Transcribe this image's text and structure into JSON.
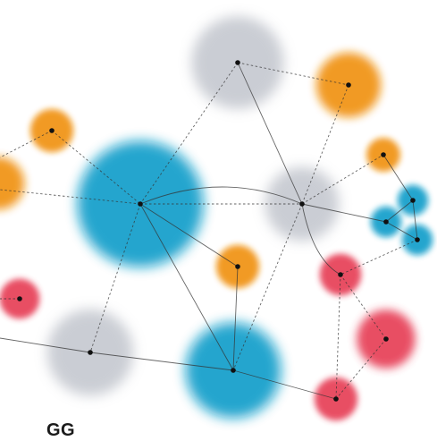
{
  "caption": "GG",
  "colors": {
    "blue": "#0a9cc9",
    "orange": "#f0900a",
    "gray": "#b9bdc6",
    "red": "#e63a52",
    "edge": "#333333",
    "dot": "#111111"
  },
  "nodes": [
    {
      "id": "gray-top",
      "color": "gray",
      "size": "large"
    },
    {
      "id": "orange-top-right",
      "color": "orange",
      "size": "medium"
    },
    {
      "id": "orange-left",
      "color": "orange",
      "size": "small"
    },
    {
      "id": "orange-edge-left",
      "color": "orange",
      "size": "large"
    },
    {
      "id": "blue-big",
      "color": "blue",
      "size": "xlarge"
    },
    {
      "id": "gray-center-right",
      "color": "gray",
      "size": "medium"
    },
    {
      "id": "orange-right",
      "color": "orange",
      "size": "small"
    },
    {
      "id": "blue-cluster-1",
      "color": "blue",
      "size": "small"
    },
    {
      "id": "blue-cluster-2",
      "color": "blue",
      "size": "small"
    },
    {
      "id": "blue-cluster-3",
      "color": "blue",
      "size": "small"
    },
    {
      "id": "orange-mid",
      "color": "orange",
      "size": "small"
    },
    {
      "id": "red-left",
      "color": "red",
      "size": "small"
    },
    {
      "id": "red-mid-right",
      "color": "red",
      "size": "small"
    },
    {
      "id": "red-right",
      "color": "red",
      "size": "medium"
    },
    {
      "id": "gray-bottom-left",
      "color": "gray",
      "size": "large"
    },
    {
      "id": "blue-bottom",
      "color": "blue",
      "size": "large"
    },
    {
      "id": "red-bottom",
      "color": "red",
      "size": "small"
    }
  ]
}
